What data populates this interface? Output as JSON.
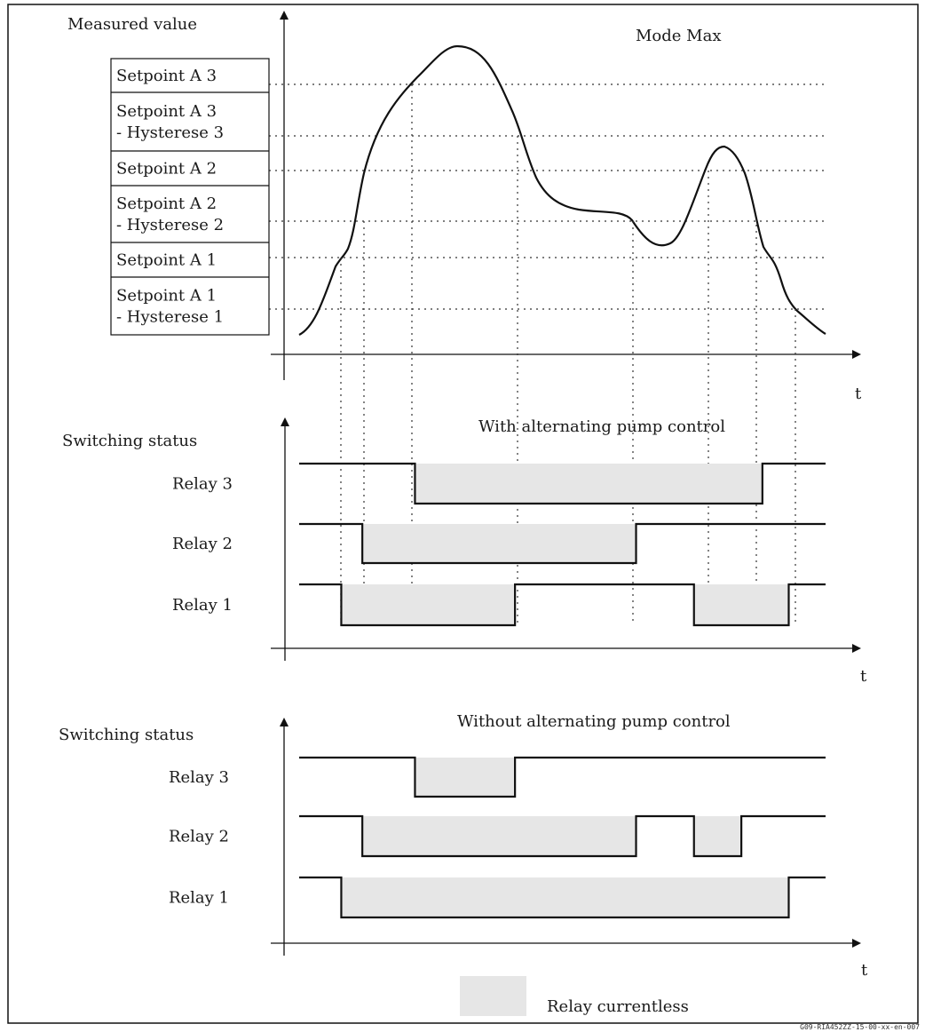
{
  "main_chart": {
    "y_axis_label": "Measured value",
    "mode_label": "Mode Max",
    "t_label": "t",
    "setpoint_labels": [
      [
        "Setpoint A 3"
      ],
      [
        "Setpoint A 3",
        "- Hysterese 3"
      ],
      [
        "Setpoint A 2"
      ],
      [
        "Setpoint A 2",
        "- Hysterese 2"
      ],
      [
        "Setpoint A 1"
      ],
      [
        "Setpoint A 1",
        "- Hysterese 1"
      ]
    ]
  },
  "with_alternating": {
    "title": "With alternating pump control",
    "y_axis_label": "Switching status",
    "t_label": "t",
    "relays": [
      {
        "name": "Relay 3",
        "currentless": [
          [
            0.22,
            0.88
          ]
        ]
      },
      {
        "name": "Relay 2",
        "currentless": [
          [
            0.12,
            0.64
          ]
        ]
      },
      {
        "name": "Relay 1",
        "currentless": [
          [
            0.08,
            0.41
          ],
          [
            0.75,
            0.93
          ]
        ]
      }
    ]
  },
  "without_alternating": {
    "title": "Without alternating pump control",
    "y_axis_label": "Switching status",
    "t_label": "t",
    "relays": [
      {
        "name": "Relay 3",
        "currentless": [
          [
            0.22,
            0.41
          ]
        ]
      },
      {
        "name": "Relay 2",
        "currentless": [
          [
            0.12,
            0.64
          ],
          [
            0.75,
            0.84
          ]
        ]
      },
      {
        "name": "Relay 1",
        "currentless": [
          [
            0.08,
            0.93
          ]
        ]
      }
    ]
  },
  "legend": {
    "label": "Relay currentless",
    "swatch_color": "#e6e6e6"
  },
  "figure_id": "G09-RIA452ZZ-15-00-xx-en-007",
  "colors": {
    "line": "#111111",
    "gridline": "#333333",
    "currentless_fill": "#e6e6e6"
  }
}
